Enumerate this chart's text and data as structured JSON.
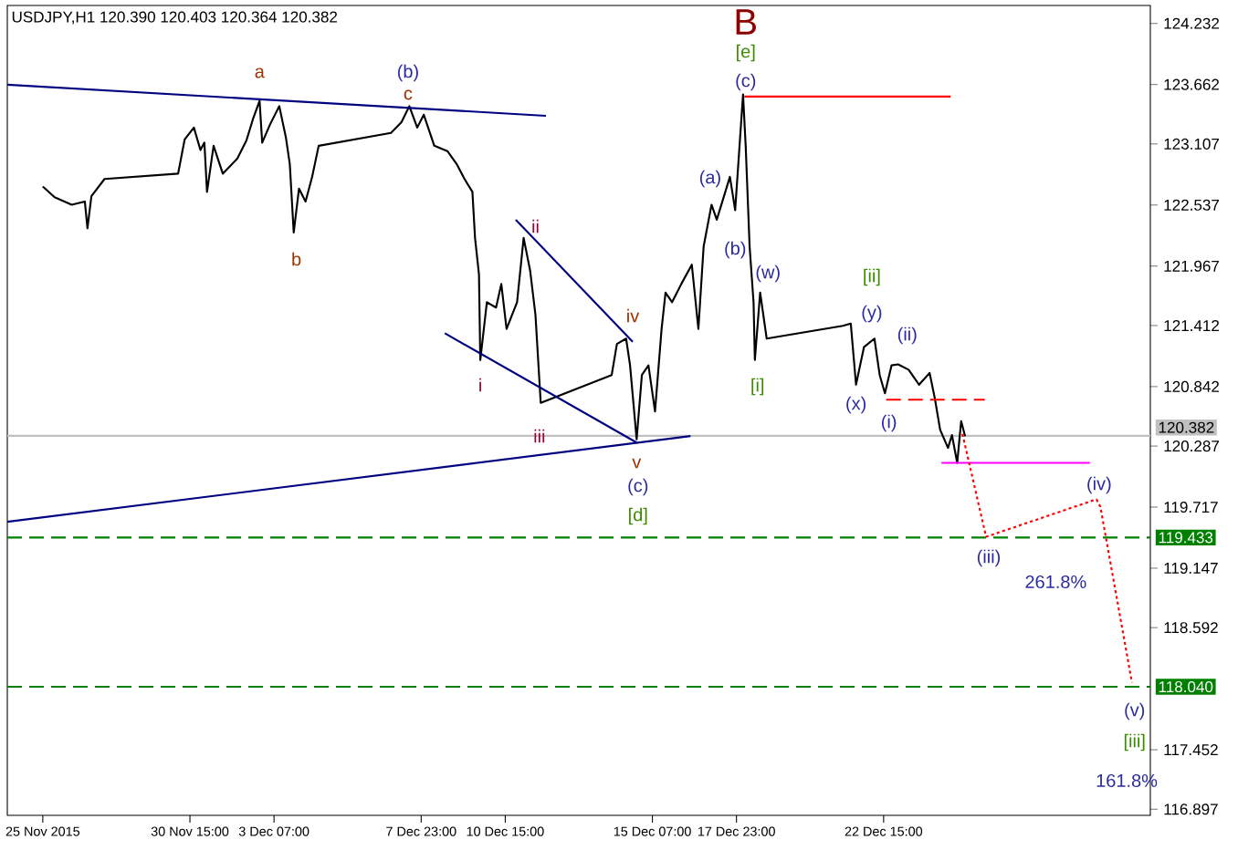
{
  "chart_data": {
    "type": "line",
    "title": "USDJPY,H1  120.390 120.403 120.364 120.382",
    "xlim": [
      "2015-11-24T20:00",
      "2015-12-31T02:00"
    ],
    "ylim": [
      116.84,
      124.4
    ],
    "xticks": [
      {
        "value": "2015-11-25T23:00",
        "label": "25 Nov 2015"
      },
      {
        "value": "2015-11-30T15:00",
        "label": "30 Nov 15:00"
      },
      {
        "value": "2015-12-03T07:00",
        "label": "3 Dec 07:00"
      },
      {
        "value": "2015-12-07T23:00",
        "label": "7 Dec 23:00"
      },
      {
        "value": "2015-12-10T15:00",
        "label": "10 Dec 15:00"
      },
      {
        "value": "2015-12-15T07:00",
        "label": "15 Dec 07:00"
      },
      {
        "value": "2015-12-17T23:00",
        "label": "17 Dec 23:00"
      },
      {
        "value": "2015-12-22T15:00",
        "label": "22 Dec 15:00"
      }
    ],
    "yticks": [
      124.232,
      123.662,
      123.107,
      122.537,
      121.967,
      121.412,
      120.842,
      120.287,
      119.717,
      119.147,
      118.592,
      117.452,
      116.897
    ],
    "series": [
      {
        "color": "#000000",
        "line_style": "solid",
        "x": [
          "2015-11-25T23:00",
          "2015-11-26T08:00",
          "2015-11-26T21:00",
          "2015-11-27T07:00",
          "2015-11-27T09:00",
          "2015-11-27T12:00",
          "2015-11-27T22:00",
          "2015-11-30T06:00",
          "2015-11-30T11:00",
          "2015-11-30T18:00",
          "2015-11-30T23:00",
          "2015-12-01T02:00",
          "2015-12-01T04:00",
          "2015-12-01T09:00",
          "2015-12-01T16:00",
          "2015-12-02T03:00",
          "2015-12-02T10:00",
          "2015-12-02T15:00",
          "2015-12-02T20:00",
          "2015-12-02T22:00",
          "2015-12-03T04:00",
          "2015-12-03T11:00",
          "2015-12-03T16:00",
          "2015-12-03T19:00",
          "2015-12-03T22:00",
          "2015-12-04T02:00",
          "2015-12-04T07:00",
          "2015-12-04T12:00",
          "2015-12-04T17:00",
          "2015-12-07T00:00",
          "2015-12-07T08:00",
          "2015-12-07T14:00",
          "2015-12-07T20:00",
          "2015-12-08T01:00",
          "2015-12-08T09:00",
          "2015-12-08T19:00",
          "2015-12-09T02:00",
          "2015-12-09T08:00",
          "2015-12-09T14:00",
          "2015-12-09T16:00",
          "2015-12-09T19:00",
          "2015-12-09T20:00",
          "2015-12-10T01:00",
          "2015-12-10T08:00",
          "2015-12-10T12:00",
          "2015-12-10T16:00",
          "2015-12-11T00:00",
          "2015-12-11T05:00",
          "2015-12-11T10:00",
          "2015-12-11T14:00",
          "2015-12-11T18:00",
          "2015-12-14T00:00",
          "2015-12-14T04:00",
          "2015-12-14T11:00",
          "2015-12-14T14:00",
          "2015-12-14T19:00",
          "2015-12-14T23:00",
          "2015-12-15T04:00",
          "2015-12-15T09:00",
          "2015-12-15T14:00",
          "2015-12-15T17:00",
          "2015-12-15T22:00",
          "2015-12-16T05:00",
          "2015-12-16T13:00",
          "2015-12-16T18:00",
          "2015-12-16T22:00",
          "2015-12-17T04:00",
          "2015-12-17T08:00",
          "2015-12-17T18:00",
          "2015-12-17T22:00",
          "2015-12-18T04:00",
          "2015-12-18T06:00",
          "2015-12-18T09:00",
          "2015-12-18T12:00",
          "2015-12-18T13:00",
          "2015-12-18T17:00",
          "2015-12-18T22:00",
          "2015-12-21T08:00",
          "2015-12-21T14:00",
          "2015-12-21T18:00",
          "2015-12-22T00:00",
          "2015-12-22T08:00",
          "2015-12-22T12:00",
          "2015-12-22T16:00",
          "2015-12-22T21:00",
          "2015-12-23T02:00",
          "2015-12-23T10:00",
          "2015-12-23T18:00",
          "2015-12-24T02:00",
          "2015-12-24T06:00",
          "2015-12-24T10:00",
          "2015-12-24T16:00",
          "2015-12-24T19:00",
          "2015-12-24T23:00",
          "2015-12-25T02:00",
          "2015-12-25T05:00"
        ],
        "values": [
          122.71,
          122.61,
          122.54,
          122.57,
          122.32,
          122.62,
          122.78,
          122.83,
          123.15,
          123.26,
          123.05,
          123.12,
          122.66,
          123.09,
          122.83,
          122.97,
          123.14,
          123.34,
          123.51,
          123.12,
          123.29,
          123.46,
          123.17,
          122.92,
          122.28,
          122.69,
          122.57,
          122.8,
          123.09,
          123.21,
          123.31,
          123.46,
          123.26,
          123.38,
          123.09,
          123.04,
          122.92,
          122.78,
          122.66,
          122.23,
          121.89,
          121.09,
          121.63,
          121.58,
          121.8,
          121.38,
          121.63,
          122.23,
          121.92,
          121.51,
          120.69,
          120.95,
          121.24,
          121.29,
          121.04,
          120.35,
          120.95,
          121.04,
          120.61,
          121.38,
          121.72,
          121.63,
          121.8,
          121.98,
          121.38,
          122.15,
          122.54,
          122.4,
          122.8,
          122.49,
          123.57,
          123.09,
          122.15,
          121.63,
          121.09,
          121.72,
          121.29,
          121.41,
          121.43,
          120.86,
          121.21,
          121.29,
          120.95,
          120.78,
          121.04,
          121.05,
          121.0,
          120.86,
          120.97,
          120.73,
          120.44,
          120.27,
          120.39,
          120.13,
          120.52,
          120.38
        ]
      },
      {
        "color": "#000080",
        "line_style": "solid",
        "x": [
          "2015-11-24T20:00",
          "2015-12-11T22:00"
        ],
        "values": [
          123.66,
          123.37
        ]
      },
      {
        "color": "#000080",
        "line_style": "solid",
        "x": [
          "2015-11-24T20:00",
          "2015-12-16T12:00"
        ],
        "values": [
          119.58,
          120.38
        ]
      },
      {
        "color": "#000080",
        "line_style": "solid",
        "x": [
          "2015-12-08T17:00",
          "2015-12-14T19:00"
        ],
        "values": [
          121.34,
          120.32
        ]
      },
      {
        "color": "#000080",
        "line_style": "solid",
        "x": [
          "2015-12-10T23:00",
          "2015-12-14T16:00"
        ],
        "values": [
          122.4,
          121.26
        ]
      },
      {
        "color": "#ff0000",
        "line_style": "solid",
        "x": [
          "2015-12-18T05:00",
          "2015-12-24T18:00"
        ],
        "values": [
          123.55,
          123.55
        ]
      },
      {
        "color": "#ff0000",
        "line_style": "dashed",
        "x": [
          "2015-12-22T17:00",
          "2015-12-25T20:00"
        ],
        "values": [
          120.72,
          120.72
        ]
      },
      {
        "color": "#ff00ff",
        "line_style": "solid",
        "x": [
          "2015-12-24T11:00",
          "2015-12-29T04:00"
        ],
        "values": [
          120.13,
          120.13
        ]
      },
      {
        "color": "#ff0000",
        "line_style": "dotted",
        "x": [
          "2015-12-25T03:00",
          "2015-12-25T21:00",
          "2015-12-29T09:00",
          "2015-12-29T12:00",
          "2015-12-30T12:00"
        ],
        "values": [
          120.4,
          119.44,
          119.79,
          119.72,
          118.08
        ]
      }
    ],
    "ref_lines": [
      {
        "axis": "y",
        "value": 120.382,
        "label": "120.382",
        "color": "#c0c0c0",
        "line_style": "solid"
      },
      {
        "axis": "y",
        "value": 119.433,
        "label": "119.433",
        "color": "#008000",
        "line_style": "dashed"
      },
      {
        "axis": "y",
        "value": 118.04,
        "label": "118.040",
        "color": "#008000",
        "line_style": "dashed"
      }
    ],
    "annotations": [
      "a",
      "(b)",
      "c",
      "b",
      "i",
      "ii",
      "iii",
      "iv",
      "v",
      "(c)",
      "[d]",
      "B",
      "[e]",
      "(c)",
      "(a)",
      "(b)",
      "(w)",
      "[ii]",
      "(y)",
      "(ii)",
      "[i]",
      "(x)",
      "(i)",
      "(iv)",
      "(iii)",
      "261.8%",
      "(v)",
      "[iii]",
      "161.8%"
    ]
  }
}
